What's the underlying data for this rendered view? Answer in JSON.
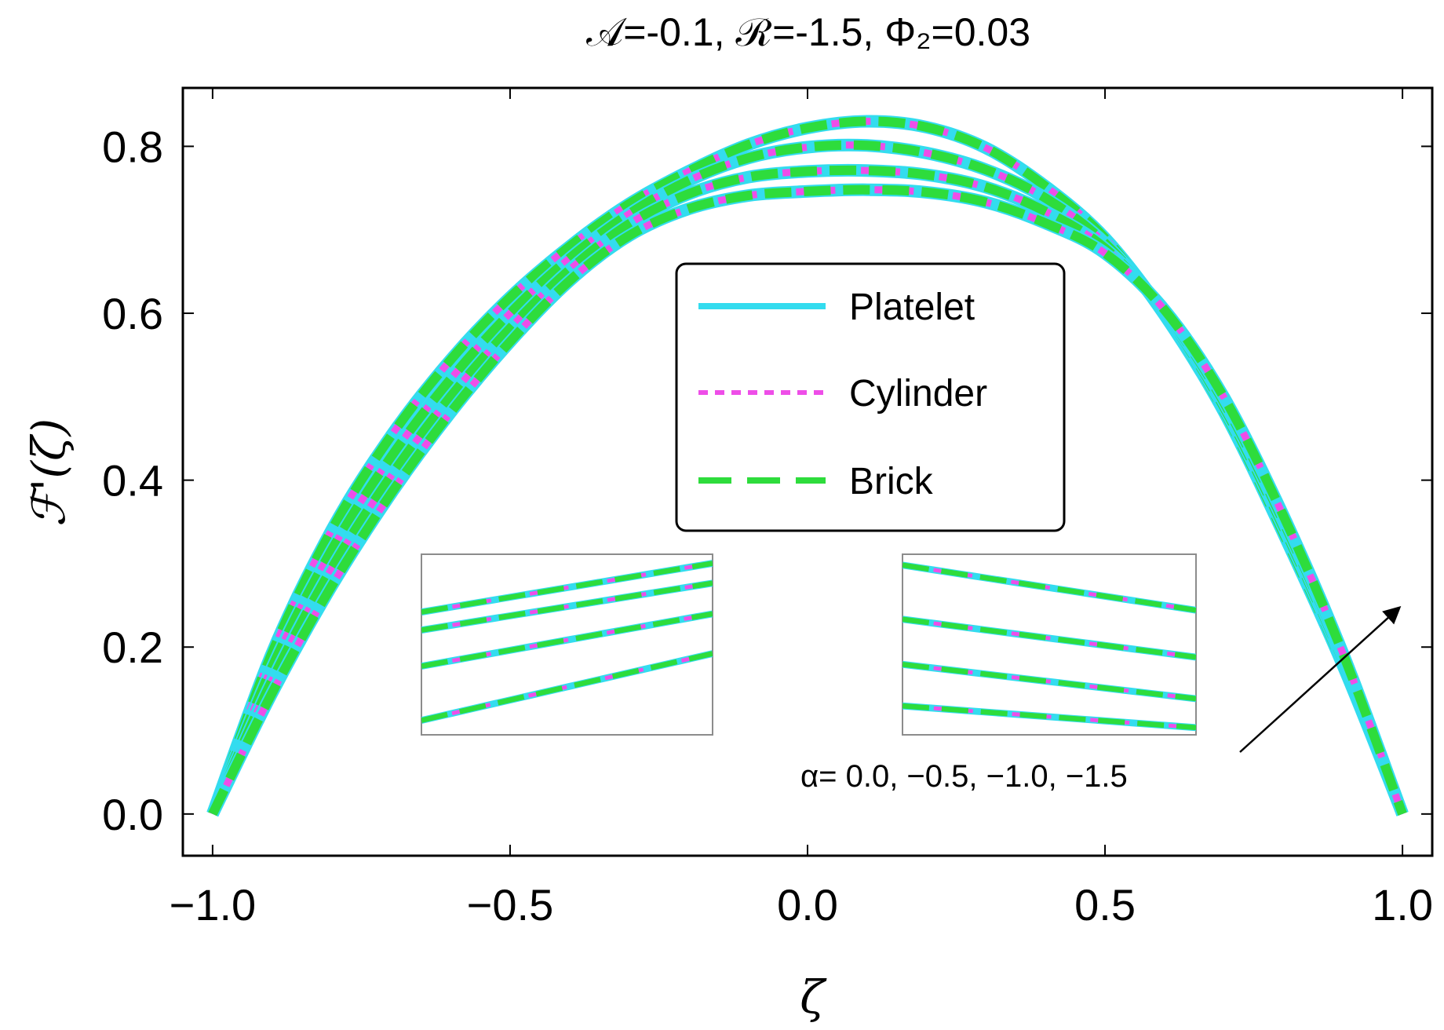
{
  "chart_data": {
    "type": "line",
    "title": "𝒜=-0.1, ℛ=-1.5, Φ₂=0.03",
    "xlabel": "ζ",
    "ylabel": "ℱ'(ζ)",
    "xlim": [
      -1.05,
      1.05
    ],
    "ylim": [
      -0.05,
      0.87
    ],
    "xticks": [
      -1.0,
      -0.5,
      0.0,
      0.5,
      1.0
    ],
    "xtick_labels": [
      "−1.0",
      "−0.5",
      "0.0",
      "0.5",
      "1.0"
    ],
    "yticks": [
      0.0,
      0.2,
      0.4,
      0.6,
      0.8
    ],
    "ytick_labels": [
      "0.0",
      "0.2",
      "0.4",
      "0.6",
      "0.8"
    ],
    "grid": false,
    "legend_position": "center",
    "x": [
      -1.0,
      -0.9,
      -0.8,
      -0.7,
      -0.6,
      -0.5,
      -0.4,
      -0.3,
      -0.2,
      -0.1,
      0.0,
      0.1,
      0.2,
      0.3,
      0.4,
      0.5,
      0.6,
      0.7,
      0.8,
      0.9,
      1.0
    ],
    "alpha_values": [
      "0.0",
      "−0.5",
      "−1.0",
      "−1.5"
    ],
    "curves": [
      {
        "alpha": "0.0",
        "values": [
          0.0,
          0.193,
          0.34,
          0.453,
          0.544,
          0.619,
          0.68,
          0.731,
          0.77,
          0.802,
          0.822,
          0.83,
          0.823,
          0.798,
          0.752,
          0.69,
          0.598,
          0.482,
          0.336,
          0.178,
          0.0
        ]
      },
      {
        "alpha": "−0.5",
        "values": [
          0.0,
          0.176,
          0.316,
          0.428,
          0.521,
          0.6,
          0.666,
          0.719,
          0.759,
          0.786,
          0.799,
          0.801,
          0.792,
          0.772,
          0.738,
          0.684,
          0.6,
          0.487,
          0.343,
          0.183,
          0.0
        ]
      },
      {
        "alpha": "−1.0",
        "values": [
          0.0,
          0.16,
          0.294,
          0.405,
          0.5,
          0.582,
          0.652,
          0.707,
          0.743,
          0.763,
          0.77,
          0.771,
          0.766,
          0.751,
          0.722,
          0.678,
          0.602,
          0.493,
          0.35,
          0.188,
          0.0
        ]
      },
      {
        "alpha": "−1.5",
        "values": [
          0.0,
          0.145,
          0.273,
          0.384,
          0.481,
          0.566,
          0.639,
          0.693,
          0.725,
          0.741,
          0.746,
          0.748,
          0.745,
          0.733,
          0.708,
          0.672,
          0.604,
          0.499,
          0.357,
          0.192,
          0.0
        ]
      }
    ],
    "series": [
      {
        "name": "Platelet",
        "color": "#33dcef",
        "dash": "solid"
      },
      {
        "name": "Cylinder",
        "color": "#ee4ee8",
        "dash": "dotted"
      },
      {
        "name": "Brick",
        "color": "#2edc3c",
        "dash": "dashed"
      }
    ],
    "annotation": "α= 0.0, −0.5, −1.0, −1.5"
  }
}
